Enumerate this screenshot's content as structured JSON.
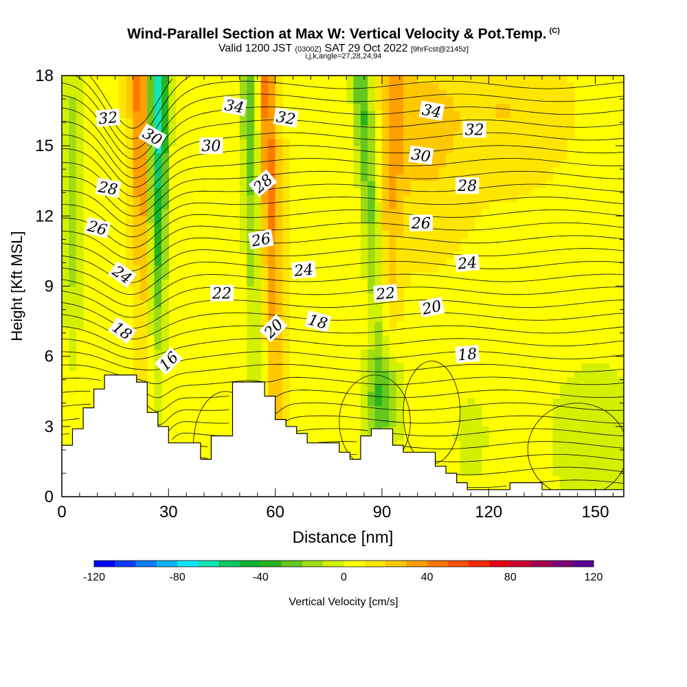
{
  "header": {
    "title": "Wind-Parallel Section at Max W: Vertical Velocity & Pot.Temp.",
    "title_tag": "(C)",
    "valid_prefix": "Valid 1200 JST",
    "valid_zulu": "(0300Z)",
    "valid_date": "SAT 29 Oct 2022",
    "forecast": "[9hrFcst@2145z]",
    "indices": "i,j,k,angle=27,28,24,94"
  },
  "chart_data": {
    "type": "heatmap",
    "xlabel": "Distance [nm]",
    "ylabel": "Height [Kft MSL]",
    "xlim": [
      0,
      158
    ],
    "ylim": [
      0,
      18
    ],
    "xticks": [
      0,
      30,
      60,
      90,
      120,
      150
    ],
    "yticks": [
      0,
      3,
      6,
      9,
      12,
      15,
      18
    ],
    "terrain_profile": [
      [
        0,
        2.2
      ],
      [
        3,
        2.2
      ],
      [
        3,
        2.9
      ],
      [
        6,
        2.9
      ],
      [
        6,
        3.8
      ],
      [
        9,
        3.8
      ],
      [
        9,
        4.6
      ],
      [
        12,
        4.6
      ],
      [
        12,
        5.2
      ],
      [
        21,
        5.2
      ],
      [
        21,
        4.9
      ],
      [
        24,
        4.9
      ],
      [
        24,
        3.6
      ],
      [
        27,
        3.6
      ],
      [
        27,
        3.0
      ],
      [
        30,
        3.0
      ],
      [
        30,
        2.3
      ],
      [
        39,
        2.3
      ],
      [
        39,
        1.6
      ],
      [
        42,
        1.6
      ],
      [
        42,
        2.6
      ],
      [
        48,
        2.6
      ],
      [
        48,
        4.9
      ],
      [
        57,
        4.9
      ],
      [
        57,
        4.3
      ],
      [
        60,
        4.3
      ],
      [
        60,
        3.3
      ],
      [
        63,
        3.3
      ],
      [
        63,
        3.0
      ],
      [
        66,
        3.0
      ],
      [
        66,
        2.7
      ],
      [
        69,
        2.7
      ],
      [
        69,
        2.3
      ],
      [
        78,
        2.3
      ],
      [
        78,
        1.9
      ],
      [
        81,
        1.9
      ],
      [
        81,
        1.6
      ],
      [
        84,
        1.6
      ],
      [
        84,
        2.6
      ],
      [
        87,
        2.6
      ],
      [
        87,
        2.9
      ],
      [
        93,
        2.9
      ],
      [
        93,
        2.2
      ],
      [
        96,
        2.2
      ],
      [
        96,
        1.9
      ],
      [
        105,
        1.9
      ],
      [
        105,
        1.3
      ],
      [
        108,
        1.3
      ],
      [
        108,
        1.0
      ],
      [
        111,
        1.0
      ],
      [
        111,
        0.6
      ],
      [
        114,
        0.6
      ],
      [
        114,
        0.3
      ],
      [
        126,
        0.3
      ],
      [
        126,
        0.6
      ],
      [
        135,
        0.6
      ],
      [
        135,
        0.3
      ],
      [
        158,
        0.3
      ]
    ],
    "updraft_bands": [
      {
        "name": "band-1",
        "x_top": 22,
        "x_base": 25,
        "w_top_cms": 40
      },
      {
        "name": "band-2",
        "x_top": 57,
        "x_base": 60,
        "w_top_cms": 40
      },
      {
        "name": "band-3",
        "x_top": 94,
        "x_base": 91,
        "w_top_cms": 20
      }
    ],
    "downdraft_bands": [
      {
        "name": "band-1",
        "x_top": 27,
        "x_base": 26,
        "w_top_cms": -80
      },
      {
        "name": "band-2",
        "x_top": 53,
        "x_base": 55,
        "w_top_cms": -40
      },
      {
        "name": "band-3",
        "x_top": 84,
        "x_base": 90,
        "w_top_cms": -40
      }
    ],
    "theta_contour_labels": [
      {
        "text": "32",
        "x": 13,
        "y": 16.2,
        "angle": -5
      },
      {
        "text": "30",
        "x": 25.5,
        "y": 15.4,
        "angle": 30
      },
      {
        "text": "34",
        "x": 48.5,
        "y": 16.7,
        "angle": 10
      },
      {
        "text": "30",
        "x": 42,
        "y": 15.0,
        "angle": 0
      },
      {
        "text": "32",
        "x": 63,
        "y": 16.2,
        "angle": 10
      },
      {
        "text": "34",
        "x": 104,
        "y": 16.5,
        "angle": 10
      },
      {
        "text": "32",
        "x": 116,
        "y": 15.7,
        "angle": 0
      },
      {
        "text": "30",
        "x": 101,
        "y": 14.6,
        "angle": 8
      },
      {
        "text": "28",
        "x": 13,
        "y": 13.2,
        "angle": 10
      },
      {
        "text": "28",
        "x": 56.5,
        "y": 13.4,
        "angle": -40
      },
      {
        "text": "28",
        "x": 114,
        "y": 13.3,
        "angle": 0
      },
      {
        "text": "26",
        "x": 10,
        "y": 11.5,
        "angle": 15
      },
      {
        "text": "26",
        "x": 56,
        "y": 11.0,
        "angle": -10
      },
      {
        "text": "26",
        "x": 101,
        "y": 11.7,
        "angle": 0
      },
      {
        "text": "24",
        "x": 17,
        "y": 9.5,
        "angle": 35
      },
      {
        "text": "24",
        "x": 68,
        "y": 9.7,
        "angle": -5
      },
      {
        "text": "24",
        "x": 114,
        "y": 10.0,
        "angle": -5
      },
      {
        "text": "22",
        "x": 45,
        "y": 8.7,
        "angle": 0
      },
      {
        "text": "22",
        "x": 91,
        "y": 8.7,
        "angle": -5
      },
      {
        "text": "20",
        "x": 59.5,
        "y": 7.2,
        "angle": -45
      },
      {
        "text": "20",
        "x": 104,
        "y": 8.1,
        "angle": -12
      },
      {
        "text": "18",
        "x": 17,
        "y": 7.1,
        "angle": 35
      },
      {
        "text": "18",
        "x": 72,
        "y": 7.5,
        "angle": 15
      },
      {
        "text": "18",
        "x": 114,
        "y": 6.1,
        "angle": -5
      },
      {
        "text": "16",
        "x": 30,
        "y": 5.8,
        "angle": -45
      }
    ],
    "colorbar": {
      "label": "Vertical Velocity [cm/s]",
      "min": -120,
      "max": 120,
      "step": 10,
      "tick_values": [
        -120,
        -80,
        -40,
        0,
        40,
        80,
        120
      ],
      "tick_labels": [
        "-120",
        "-80",
        "-40",
        "0",
        "40",
        "80",
        "120"
      ],
      "colors": [
        "#0000ff",
        "#0a3cff",
        "#0e7dff",
        "#10b4ff",
        "#10e6ff",
        "#10e6b4",
        "#10c864",
        "#10b432",
        "#28b41e",
        "#64c81e",
        "#a0dc14",
        "#d2f000",
        "#ffff00",
        "#ffe600",
        "#ffc800",
        "#ffa000",
        "#ff7800",
        "#ff5000",
        "#ff2800",
        "#e60014",
        "#c80032",
        "#a00050",
        "#7d0078",
        "#5a0096"
      ]
    }
  }
}
